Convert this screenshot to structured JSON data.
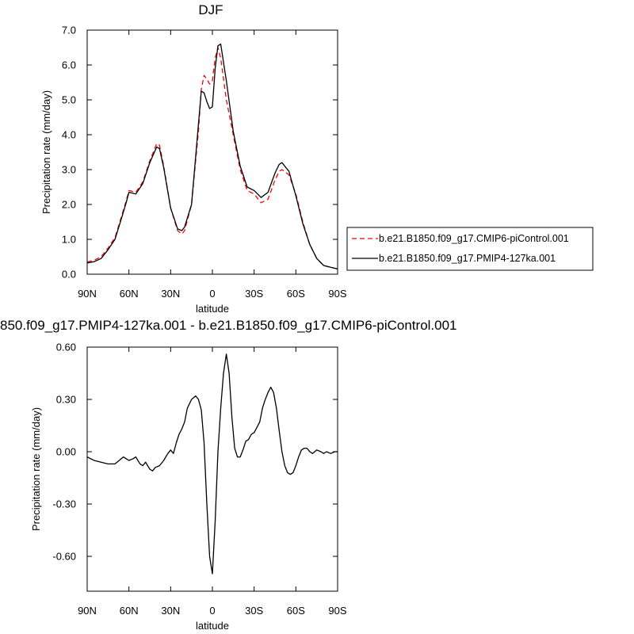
{
  "chart_data": [
    {
      "type": "line",
      "title": "DJF",
      "xlabel": "latitude",
      "ylabel": "Precipitation rate (mm/day)",
      "xlim": [
        -90,
        90
      ],
      "x_direction": "90N (left) to 90S (right)",
      "ylim": [
        0,
        7
      ],
      "x_tick_values": [
        -90,
        -60,
        -30,
        0,
        30,
        60,
        90
      ],
      "x_tick_labels": [
        "90N",
        "60N",
        "30N",
        "0",
        "30S",
        "60S",
        "90S"
      ],
      "y_tick_values": [
        0,
        1,
        2,
        3,
        4,
        5,
        6,
        7
      ],
      "y_tick_labels": [
        "0.0",
        "1.0",
        "2.0",
        "3.0",
        "4.0",
        "5.0",
        "6.0",
        "7.0"
      ],
      "grid": false,
      "legend_position": "right",
      "series": [
        {
          "name": "b.e21.B1850.f09_g17.CMIP6-piControl.001",
          "color": "#ff0000",
          "dash": "dashed",
          "x": [
            -90,
            -85,
            -80,
            -75,
            -70,
            -65,
            -62,
            -60,
            -55,
            -50,
            -45,
            -40,
            -38,
            -35,
            -30,
            -25,
            -22,
            -20,
            -15,
            -10,
            -8,
            -6,
            -4,
            -2,
            0,
            2,
            4,
            6,
            10,
            15,
            20,
            25,
            30,
            35,
            40,
            45,
            48,
            50,
            55,
            60,
            65,
            70,
            75,
            80,
            85,
            90
          ],
          "y": [
            0.35,
            0.4,
            0.5,
            0.75,
            1.05,
            1.7,
            2.1,
            2.4,
            2.35,
            2.65,
            3.25,
            3.75,
            3.7,
            3.1,
            1.9,
            1.25,
            1.15,
            1.25,
            2.0,
            4.1,
            5.3,
            5.7,
            5.6,
            5.45,
            5.55,
            6.2,
            6.5,
            6.2,
            5.0,
            4.0,
            3.0,
            2.4,
            2.3,
            2.05,
            2.15,
            2.7,
            2.95,
            3.0,
            2.85,
            2.3,
            1.5,
            0.85,
            0.45,
            0.25,
            0.2,
            0.15
          ]
        },
        {
          "name": "b.e21.B1850.f09_g17.PMIP4-127ka.001",
          "color": "#000000",
          "dash": "solid",
          "x": [
            -90,
            -85,
            -80,
            -75,
            -70,
            -65,
            -62,
            -60,
            -55,
            -50,
            -45,
            -40,
            -38,
            -35,
            -30,
            -25,
            -22,
            -20,
            -15,
            -10,
            -8,
            -6,
            -4,
            -2,
            0,
            2,
            4,
            6,
            10,
            15,
            20,
            25,
            30,
            35,
            40,
            45,
            48,
            50,
            55,
            60,
            65,
            70,
            75,
            80,
            85,
            90
          ],
          "y": [
            0.32,
            0.36,
            0.45,
            0.7,
            1.0,
            1.65,
            2.05,
            2.35,
            2.3,
            2.6,
            3.2,
            3.65,
            3.6,
            3.05,
            1.9,
            1.3,
            1.25,
            1.35,
            2.0,
            4.3,
            5.25,
            5.2,
            4.95,
            4.75,
            4.8,
            5.9,
            6.55,
            6.6,
            5.55,
            4.1,
            3.1,
            2.5,
            2.4,
            2.2,
            2.35,
            2.9,
            3.15,
            3.2,
            2.95,
            2.25,
            1.45,
            0.85,
            0.45,
            0.25,
            0.2,
            0.15
          ]
        }
      ]
    },
    {
      "type": "line",
      "title": "850.f09_g17.PMIP4-127ka.001 - b.e21.B1850.f09_g17.CMIP6-piControl.001",
      "xlabel": "latitude",
      "ylabel": "Precipitation rate (mm/day)",
      "xlim": [
        -90,
        90
      ],
      "x_direction": "90N (left) to 90S (right)",
      "ylim": [
        -0.8,
        0.6
      ],
      "x_tick_values": [
        -90,
        -60,
        -30,
        0,
        30,
        60,
        90
      ],
      "x_tick_labels": [
        "90N",
        "60N",
        "30N",
        "0",
        "30S",
        "60S",
        "90S"
      ],
      "y_tick_values": [
        -0.6,
        -0.3,
        0,
        0.3,
        0.6
      ],
      "y_tick_labels": [
        "-0.60",
        "-0.30",
        "0.00",
        "0.30",
        "0.60"
      ],
      "grid": false,
      "series": [
        {
          "name": "",
          "color": "#000000",
          "dash": "solid",
          "x": [
            -90,
            -85,
            -80,
            -75,
            -70,
            -67,
            -64,
            -62,
            -60,
            -57,
            -55,
            -52,
            -50,
            -48,
            -45,
            -43,
            -41,
            -38,
            -35,
            -32,
            -30,
            -28,
            -26,
            -24,
            -22,
            -20,
            -18,
            -15,
            -12,
            -10,
            -8,
            -6,
            -4,
            -2,
            0,
            2,
            4,
            6,
            8,
            10,
            12,
            14,
            16,
            18,
            20,
            22,
            24,
            26,
            28,
            30,
            32,
            34,
            36,
            38,
            40,
            42,
            44,
            46,
            48,
            50,
            52,
            54,
            56,
            58,
            60,
            62,
            64,
            66,
            68,
            70,
            72,
            75,
            78,
            80,
            82,
            85,
            88,
            90
          ],
          "y": [
            -0.03,
            -0.05,
            -0.06,
            -0.07,
            -0.07,
            -0.05,
            -0.03,
            -0.04,
            -0.05,
            -0.04,
            -0.03,
            -0.07,
            -0.08,
            -0.06,
            -0.1,
            -0.11,
            -0.09,
            -0.08,
            -0.05,
            -0.01,
            0.01,
            -0.01,
            0.05,
            0.1,
            0.13,
            0.17,
            0.25,
            0.3,
            0.32,
            0.3,
            0.24,
            0.05,
            -0.3,
            -0.6,
            -0.7,
            -0.4,
            0.0,
            0.25,
            0.45,
            0.56,
            0.45,
            0.2,
            0.02,
            -0.03,
            -0.03,
            0.01,
            0.06,
            0.07,
            0.1,
            0.11,
            0.14,
            0.17,
            0.25,
            0.3,
            0.34,
            0.37,
            0.34,
            0.25,
            0.12,
            0.0,
            -0.08,
            -0.12,
            -0.13,
            -0.12,
            -0.08,
            -0.03,
            0.01,
            0.02,
            0.02,
            0.0,
            -0.01,
            0.01,
            0.0,
            -0.01,
            0.0,
            -0.01,
            0.0,
            0.0
          ]
        }
      ]
    }
  ]
}
